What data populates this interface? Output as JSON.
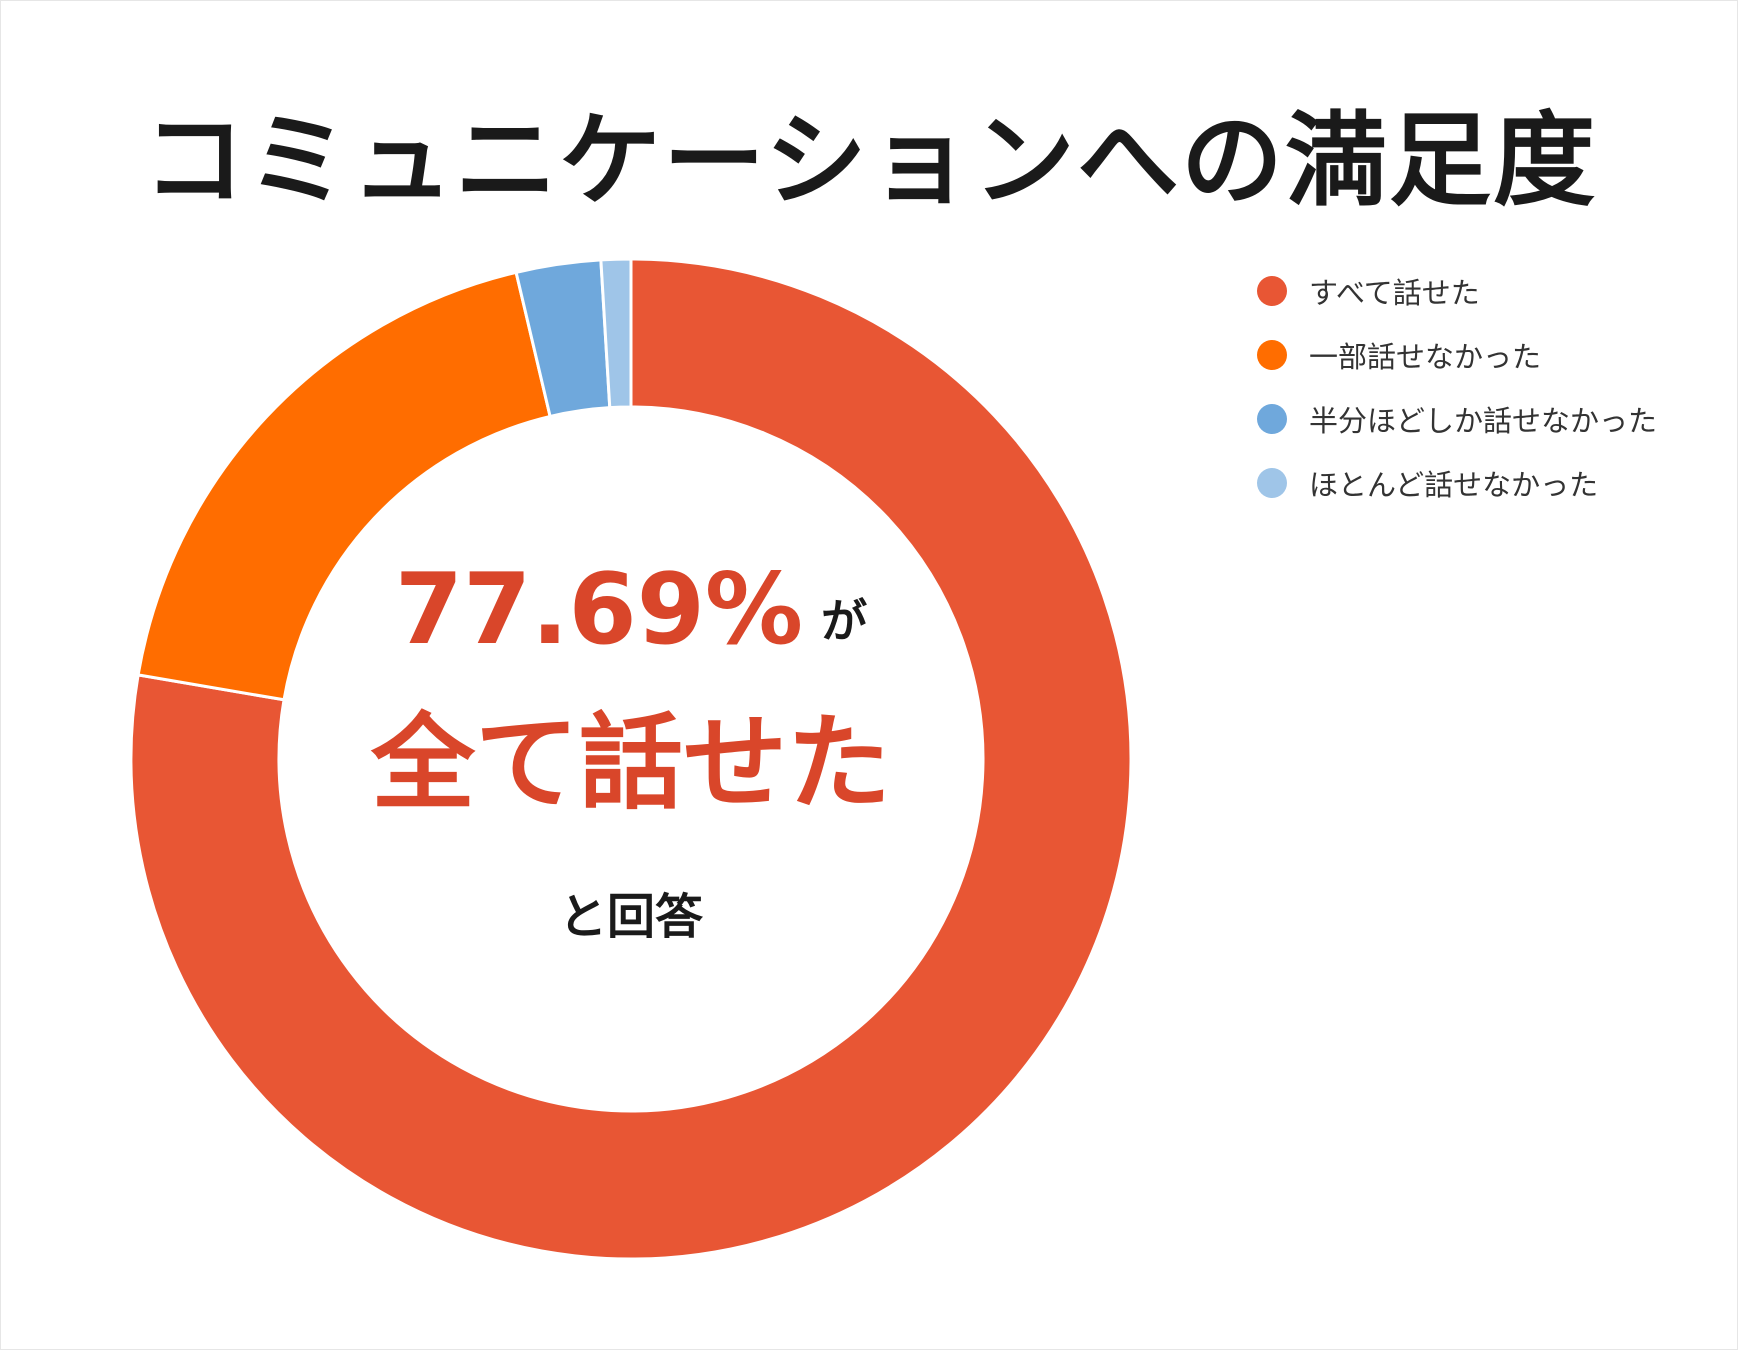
{
  "title": "コミュニケーションへの満足度",
  "center": {
    "percent_text": "77.69%",
    "ga_text": "が",
    "headline": "全て話せた",
    "sub": "と回答"
  },
  "chart_data": {
    "type": "pie",
    "variant": "donut",
    "title": "コミュニケーションへの満足度",
    "legend_position": "top-right",
    "categories": [
      "すべて話せた",
      "一部話せなかった",
      "半分ほどしか話せなかった",
      "ほとんど話せなかった"
    ],
    "values": [
      77.69,
      18.62,
      2.73,
      0.96
    ],
    "colors": [
      "#e85634",
      "#ff6d00",
      "#6fa8dc",
      "#9fc5e8"
    ]
  }
}
